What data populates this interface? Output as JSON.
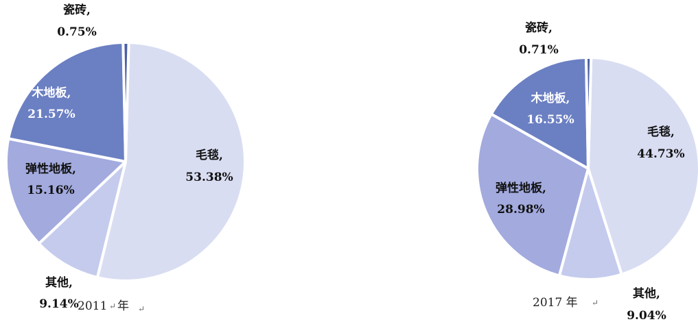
{
  "chart_data": [
    {
      "type": "pie",
      "title": "2011年",
      "slices": [
        {
          "name": "毛毯",
          "value": 53.38,
          "label_name": "毛毯,",
          "label_value": "53.38%",
          "color": "#d9ddf2"
        },
        {
          "name": "其他",
          "value": 9.14,
          "label_name": "其他,",
          "label_value": "9.14%",
          "color": "#c4cbed"
        },
        {
          "name": "弹性地板",
          "value": 15.16,
          "label_name": "弹性地板,",
          "label_value": "15.16%",
          "color": "#a2aade"
        },
        {
          "name": "木地板",
          "value": 21.57,
          "label_name": "木地板,",
          "label_value": "21.57%",
          "color": "#6b7fc3"
        },
        {
          "name": "瓷砖",
          "value": 0.75,
          "label_name": "瓷砖,",
          "label_value": "0.75%",
          "color": "#4b5fa6"
        }
      ]
    },
    {
      "type": "pie",
      "title": "2017 年",
      "slices": [
        {
          "name": "毛毯",
          "value": 44.73,
          "label_name": "毛毯,",
          "label_value": "44.73%",
          "color": "#d9ddf2"
        },
        {
          "name": "其他",
          "value": 9.04,
          "label_name": "其他,",
          "label_value": "9.04%",
          "color": "#c4cbed"
        },
        {
          "name": "弹性地板",
          "value": 28.98,
          "label_name": "弹性地板,",
          "label_value": "28.98%",
          "color": "#a2aade"
        },
        {
          "name": "木地板",
          "value": 16.55,
          "label_name": "木地板,",
          "label_value": "16.55%",
          "color": "#6b7fc3"
        },
        {
          "name": "瓷砖",
          "value": 0.71,
          "label_name": "瓷砖,",
          "label_value": "0.71%",
          "color": "#4b5fa6"
        }
      ]
    }
  ],
  "captions": {
    "left": "2011",
    "left_suffix": "年",
    "right": "2017 年",
    "return_mark": "↵"
  },
  "colors": {
    "label_dark": "#111111",
    "label_light": "#ffffff",
    "separator": "#ffffff"
  }
}
